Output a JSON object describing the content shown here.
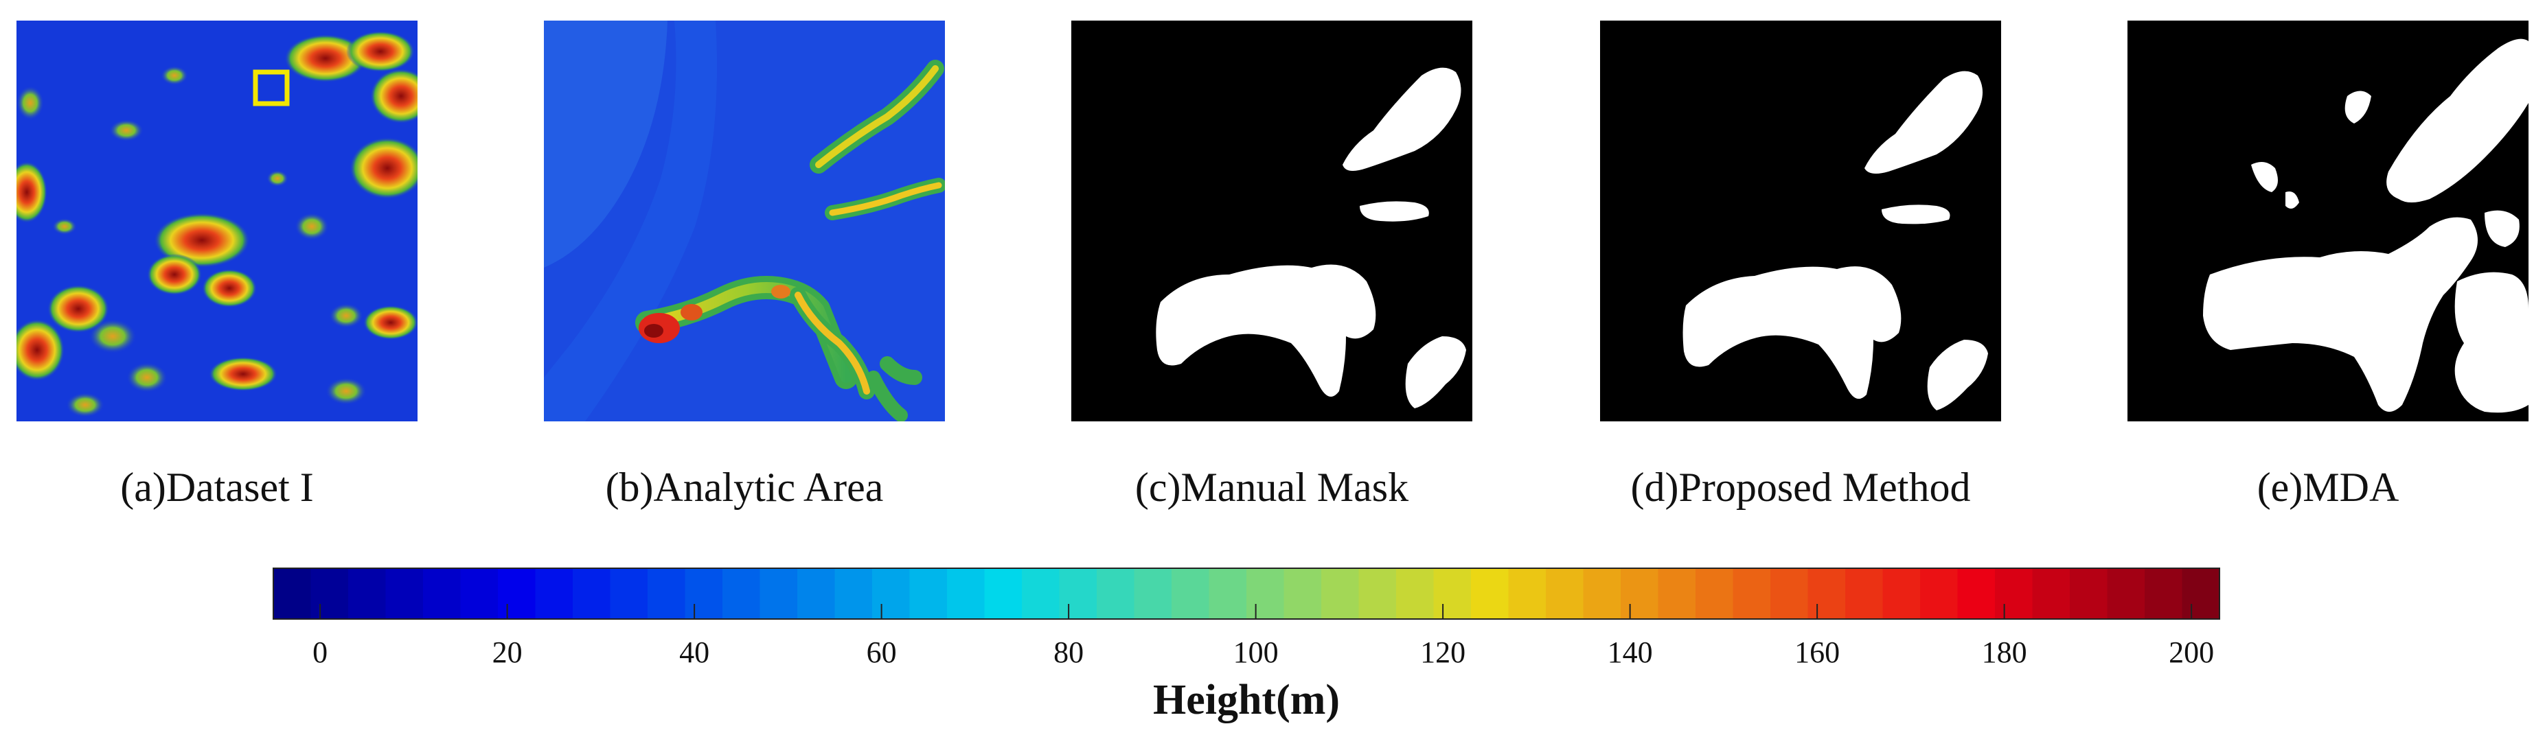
{
  "panels": [
    {
      "caption": "(a)Dataset I"
    },
    {
      "caption": "(b)Analytic Area"
    },
    {
      "caption": "(c)Manual Mask"
    },
    {
      "caption": "(d)Proposed Method"
    },
    {
      "caption": "(e)MDA"
    }
  ],
  "colorbar": {
    "label": "Height(m)",
    "min": -5,
    "max": 203,
    "ticks": [
      0,
      20,
      40,
      60,
      80,
      100,
      120,
      140,
      160,
      180,
      200
    ],
    "steps": 52,
    "colormap": "jet",
    "colors": {
      "low": "#0a1fd8",
      "mid": "#f3c428",
      "high": "#7e0606",
      "highlight_box": "#f2e600",
      "mask_fg": "#ffffff",
      "mask_bg": "#000000"
    }
  }
}
